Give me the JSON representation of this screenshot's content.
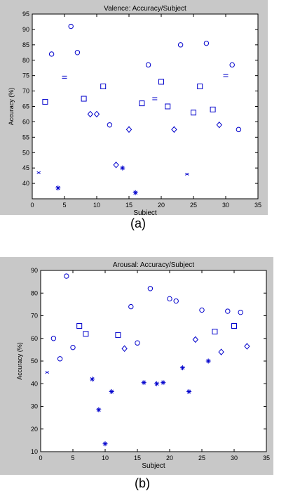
{
  "chart_data": [
    {
      "type": "scatter",
      "title": "Valence: Accuracy/Subject",
      "xlabel": "Subject",
      "ylabel": "Accuracy (%)",
      "xlim": [
        0,
        35
      ],
      "ylim": [
        35,
        95
      ],
      "xticks": [
        0,
        5,
        10,
        15,
        20,
        25,
        30,
        35
      ],
      "yticks": [
        40,
        45,
        50,
        55,
        60,
        65,
        70,
        75,
        80,
        85,
        90,
        95
      ],
      "ytick_labels": [
        "40",
        "45",
        "50",
        "55",
        "60",
        "65",
        "70",
        "75",
        "80",
        "85",
        "90",
        "95"
      ],
      "grid": false,
      "color": "#0000cc",
      "points": [
        {
          "x": 1,
          "y": 43.5,
          "marker": "x"
        },
        {
          "x": 2,
          "y": 66.5,
          "marker": "square"
        },
        {
          "x": 3,
          "y": 82,
          "marker": "circle"
        },
        {
          "x": 4,
          "y": 38.5,
          "marker": "star"
        },
        {
          "x": 5,
          "y": 74.5,
          "marker": "hbar"
        },
        {
          "x": 6,
          "y": 91,
          "marker": "circle"
        },
        {
          "x": 7,
          "y": 82.5,
          "marker": "circle"
        },
        {
          "x": 8,
          "y": 67.5,
          "marker": "square"
        },
        {
          "x": 9,
          "y": 62.5,
          "marker": "diamond"
        },
        {
          "x": 10,
          "y": 62.5,
          "marker": "diamond"
        },
        {
          "x": 11,
          "y": 71.5,
          "marker": "square"
        },
        {
          "x": 12,
          "y": 59,
          "marker": "circle"
        },
        {
          "x": 13,
          "y": 46,
          "marker": "diamond"
        },
        {
          "x": 14,
          "y": 45,
          "marker": "star"
        },
        {
          "x": 15,
          "y": 57.5,
          "marker": "diamond"
        },
        {
          "x": 16,
          "y": 37,
          "marker": "star"
        },
        {
          "x": 17,
          "y": 66,
          "marker": "square"
        },
        {
          "x": 18,
          "y": 78.5,
          "marker": "circle"
        },
        {
          "x": 19,
          "y": 67.5,
          "marker": "hbar"
        },
        {
          "x": 20,
          "y": 73,
          "marker": "square"
        },
        {
          "x": 21,
          "y": 65,
          "marker": "square"
        },
        {
          "x": 22,
          "y": 57.5,
          "marker": "diamond"
        },
        {
          "x": 23,
          "y": 85,
          "marker": "circle"
        },
        {
          "x": 24,
          "y": 43,
          "marker": "x"
        },
        {
          "x": 25,
          "y": 63,
          "marker": "square"
        },
        {
          "x": 26,
          "y": 71.5,
          "marker": "square"
        },
        {
          "x": 27,
          "y": 85.5,
          "marker": "circle"
        },
        {
          "x": 28,
          "y": 64,
          "marker": "square"
        },
        {
          "x": 29,
          "y": 59,
          "marker": "diamond"
        },
        {
          "x": 30,
          "y": 75,
          "marker": "hbar"
        },
        {
          "x": 31,
          "y": 78.5,
          "marker": "circle"
        },
        {
          "x": 32,
          "y": 57.5,
          "marker": "circle"
        }
      ],
      "panel_label": "(a)"
    },
    {
      "type": "scatter",
      "title": "Arousal: Accuracy/Subject",
      "xlabel": "Subject",
      "ylabel": "Accuracy (%)",
      "xlim": [
        0,
        35
      ],
      "ylim": [
        10,
        90
      ],
      "xticks": [
        0,
        5,
        10,
        15,
        20,
        25,
        30,
        35
      ],
      "yticks": [
        10,
        20,
        30,
        40,
        50,
        60,
        70,
        80,
        90
      ],
      "ytick_labels": [
        "10",
        "20",
        "30",
        "40",
        "50",
        "60",
        "70",
        "80",
        "90"
      ],
      "grid": false,
      "color": "#0000cc",
      "points": [
        {
          "x": 1,
          "y": 45,
          "marker": "x"
        },
        {
          "x": 2,
          "y": 60,
          "marker": "circle"
        },
        {
          "x": 3,
          "y": 51,
          "marker": "circle"
        },
        {
          "x": 4,
          "y": 87.5,
          "marker": "circle"
        },
        {
          "x": 5,
          "y": 56,
          "marker": "circle"
        },
        {
          "x": 6,
          "y": 65.5,
          "marker": "square"
        },
        {
          "x": 7,
          "y": 62,
          "marker": "square"
        },
        {
          "x": 8,
          "y": 42,
          "marker": "star"
        },
        {
          "x": 9,
          "y": 28.5,
          "marker": "star"
        },
        {
          "x": 10,
          "y": 13.5,
          "marker": "star"
        },
        {
          "x": 11,
          "y": 36.5,
          "marker": "star"
        },
        {
          "x": 12,
          "y": 61.5,
          "marker": "square"
        },
        {
          "x": 13,
          "y": 55.5,
          "marker": "diamond"
        },
        {
          "x": 14,
          "y": 74,
          "marker": "circle"
        },
        {
          "x": 15,
          "y": 58,
          "marker": "circle"
        },
        {
          "x": 16,
          "y": 40.5,
          "marker": "star"
        },
        {
          "x": 17,
          "y": 82,
          "marker": "circle"
        },
        {
          "x": 18,
          "y": 40,
          "marker": "star"
        },
        {
          "x": 19,
          "y": 40.5,
          "marker": "star"
        },
        {
          "x": 20,
          "y": 77.5,
          "marker": "circle"
        },
        {
          "x": 21,
          "y": 76.5,
          "marker": "circle"
        },
        {
          "x": 22,
          "y": 47,
          "marker": "star"
        },
        {
          "x": 23,
          "y": 36.5,
          "marker": "star"
        },
        {
          "x": 24,
          "y": 59.5,
          "marker": "diamond"
        },
        {
          "x": 25,
          "y": 72.5,
          "marker": "circle"
        },
        {
          "x": 26,
          "y": 50,
          "marker": "star"
        },
        {
          "x": 27,
          "y": 63,
          "marker": "square"
        },
        {
          "x": 28,
          "y": 54,
          "marker": "diamond"
        },
        {
          "x": 29,
          "y": 72,
          "marker": "circle"
        },
        {
          "x": 30,
          "y": 65.5,
          "marker": "square"
        },
        {
          "x": 31,
          "y": 71.5,
          "marker": "circle"
        },
        {
          "x": 32,
          "y": 56.5,
          "marker": "diamond"
        }
      ],
      "panel_label": "(b)"
    }
  ]
}
